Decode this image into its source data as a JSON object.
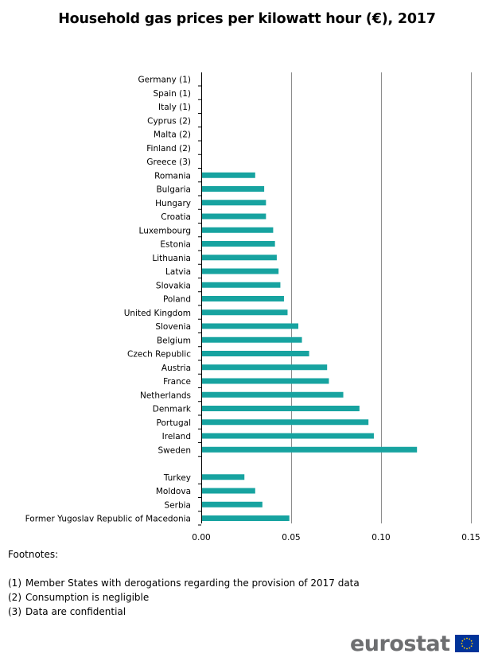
{
  "title": "Household gas prices per kilowatt hour (€),  2017",
  "chart_data": {
    "type": "bar",
    "orientation": "horizontal",
    "categories": [
      "Germany (1)",
      "Spain (1)",
      "Italy (1)",
      "Cyprus (2)",
      "Malta (2)",
      "Finland (2)",
      "Greece (3)",
      "Romania",
      "Bulgaria",
      "Hungary",
      "Croatia",
      "Luxembourg",
      "Estonia",
      "Lithuania",
      "Latvia",
      "Slovakia",
      "Poland",
      "United Kingdom",
      "Slovenia",
      "Belgium",
      "Czech Republic",
      "Austria",
      "France",
      "Netherlands",
      "Denmark",
      "Portugal",
      "Ireland",
      "Sweden",
      "",
      "Turkey",
      "Moldova",
      "Serbia",
      "Former Yugoslav Republic of Macedonia"
    ],
    "values": [
      null,
      null,
      null,
      null,
      null,
      null,
      null,
      0.03,
      0.035,
      0.036,
      0.036,
      0.04,
      0.041,
      0.042,
      0.043,
      0.044,
      0.046,
      0.048,
      0.054,
      0.056,
      0.06,
      0.07,
      0.071,
      0.079,
      0.088,
      0.093,
      0.096,
      0.12,
      null,
      0.024,
      0.03,
      0.034,
      0.049
    ],
    "xlim": [
      0,
      0.15
    ],
    "xticks": [
      "0.00",
      "0.05",
      "0.10",
      "0.15"
    ],
    "xtick_values": [
      0,
      0.05,
      0.1,
      0.15
    ],
    "grid": "vertical",
    "bar_color": "#17a3a0",
    "xlabel": "",
    "ylabel": ""
  },
  "footnotes": {
    "heading": "Footnotes:",
    "items": [
      {
        "num": "(1)",
        "text": "Member States with derogations regarding the provision of 2017 data"
      },
      {
        "num": "(2)",
        "text": "Consumption is negligible"
      },
      {
        "num": "(3)",
        "text": "Data are confidential"
      }
    ]
  },
  "logo": {
    "text": "eurostat",
    "flag_icon": "eu-flag-icon",
    "text_color": "#6d6e70",
    "flag_color": "#003399",
    "star_color": "#ffcc00"
  }
}
